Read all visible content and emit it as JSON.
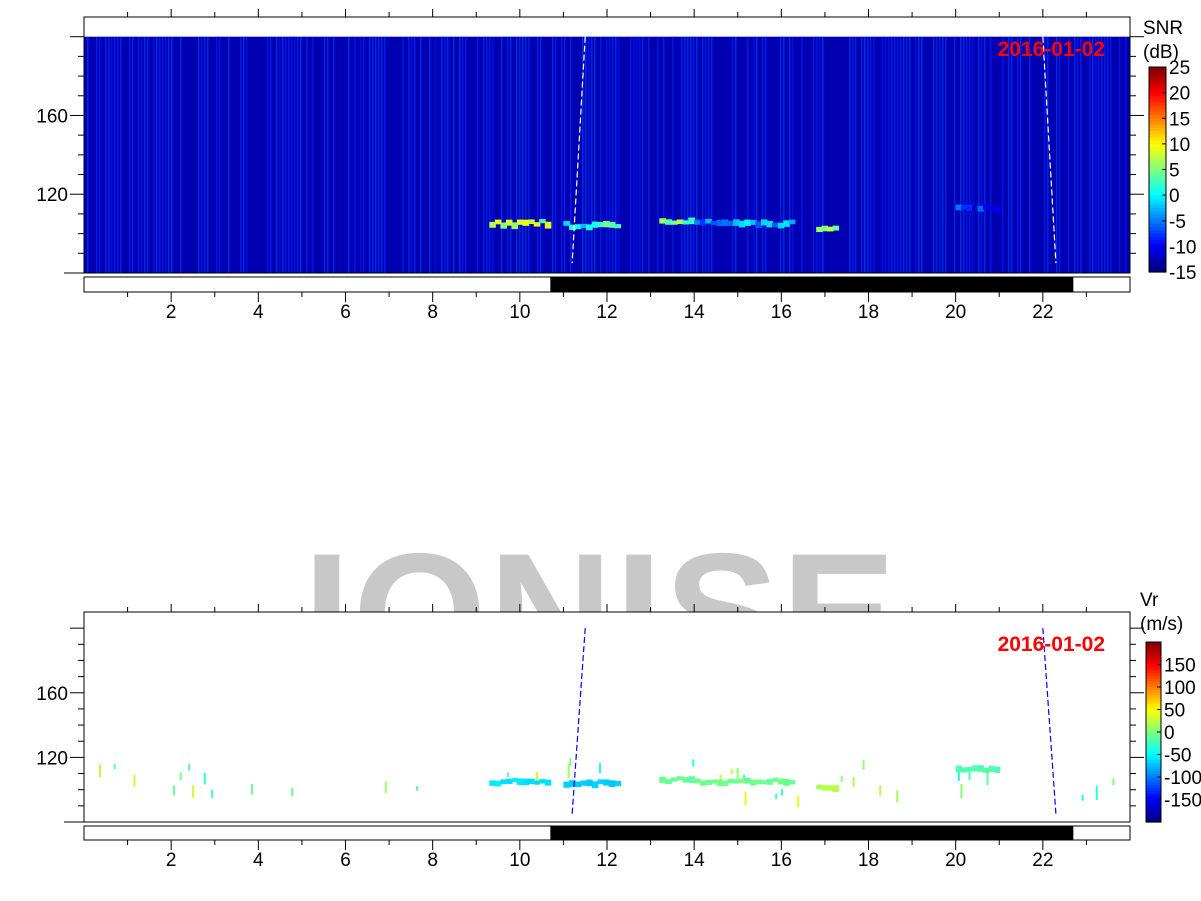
{
  "watermark": "IONISE",
  "chart_data": [
    {
      "type": "heatmap",
      "date_label": "2016-01-02",
      "colorbar_label": [
        "SNR",
        "(dB)"
      ],
      "colorbar_ticks": [
        25,
        20,
        15,
        10,
        5,
        0,
        -5,
        -10,
        -15
      ],
      "clim": [
        -15,
        25
      ],
      "xlim": [
        0,
        24
      ],
      "ylim": [
        80,
        210
      ],
      "data_ylim": [
        80,
        200
      ],
      "x_ticks": [
        2,
        4,
        6,
        8,
        10,
        12,
        14,
        16,
        18,
        20,
        22
      ],
      "y_ticks": [
        120,
        160
      ],
      "background_value": -13,
      "echoes": [
        {
          "t": [
            9.3,
            10.7
          ],
          "h": 105,
          "value": 6
        },
        {
          "t": [
            11.0,
            12.3
          ],
          "h": 104,
          "value": 1
        },
        {
          "t": [
            13.2,
            14.0
          ],
          "h": 106,
          "value": 6
        },
        {
          "t": [
            14.0,
            16.3
          ],
          "h": 105,
          "value": -4
        },
        {
          "t": [
            16.8,
            17.3
          ],
          "h": 102,
          "value": 6
        },
        {
          "t": [
            20.0,
            21.0
          ],
          "h": 113,
          "value": -9
        }
      ],
      "terminator_lines": [
        [
          [
            11.5,
            200
          ],
          [
            11.2,
            85
          ]
        ],
        [
          [
            22.0,
            200
          ],
          [
            22.3,
            85
          ]
        ]
      ],
      "night_interval": [
        10.7,
        22.7
      ]
    },
    {
      "type": "heatmap",
      "date_label": "2016-01-02",
      "colorbar_label": [
        "Vr",
        "(m/s)"
      ],
      "colorbar_ticks": [
        150,
        100,
        50,
        0,
        -50,
        -100,
        -150
      ],
      "clim": [
        -200,
        200
      ],
      "xlim": [
        0,
        24
      ],
      "ylim": [
        80,
        210
      ],
      "data_ylim": [
        80,
        200
      ],
      "x_ticks": [
        2,
        4,
        6,
        8,
        10,
        12,
        14,
        16,
        18,
        20,
        22
      ],
      "y_ticks": [
        120,
        160
      ],
      "echoes": [
        {
          "t": [
            9.3,
            10.7
          ],
          "h": 105,
          "value": -60
        },
        {
          "t": [
            11.0,
            12.3
          ],
          "h": 104,
          "value": -70
        },
        {
          "t": [
            13.2,
            14.0
          ],
          "h": 106,
          "value": -10
        },
        {
          "t": [
            14.0,
            16.3
          ],
          "h": 105,
          "value": -5
        },
        {
          "t": [
            16.8,
            17.3
          ],
          "h": 102,
          "value": 20
        },
        {
          "t": [
            20.0,
            21.0
          ],
          "h": 113,
          "value": -20
        }
      ],
      "terminator_lines": [
        [
          [
            11.5,
            200
          ],
          [
            11.2,
            85
          ]
        ],
        [
          [
            22.0,
            200
          ],
          [
            22.3,
            85
          ]
        ]
      ],
      "night_interval": [
        10.7,
        22.7
      ]
    }
  ]
}
